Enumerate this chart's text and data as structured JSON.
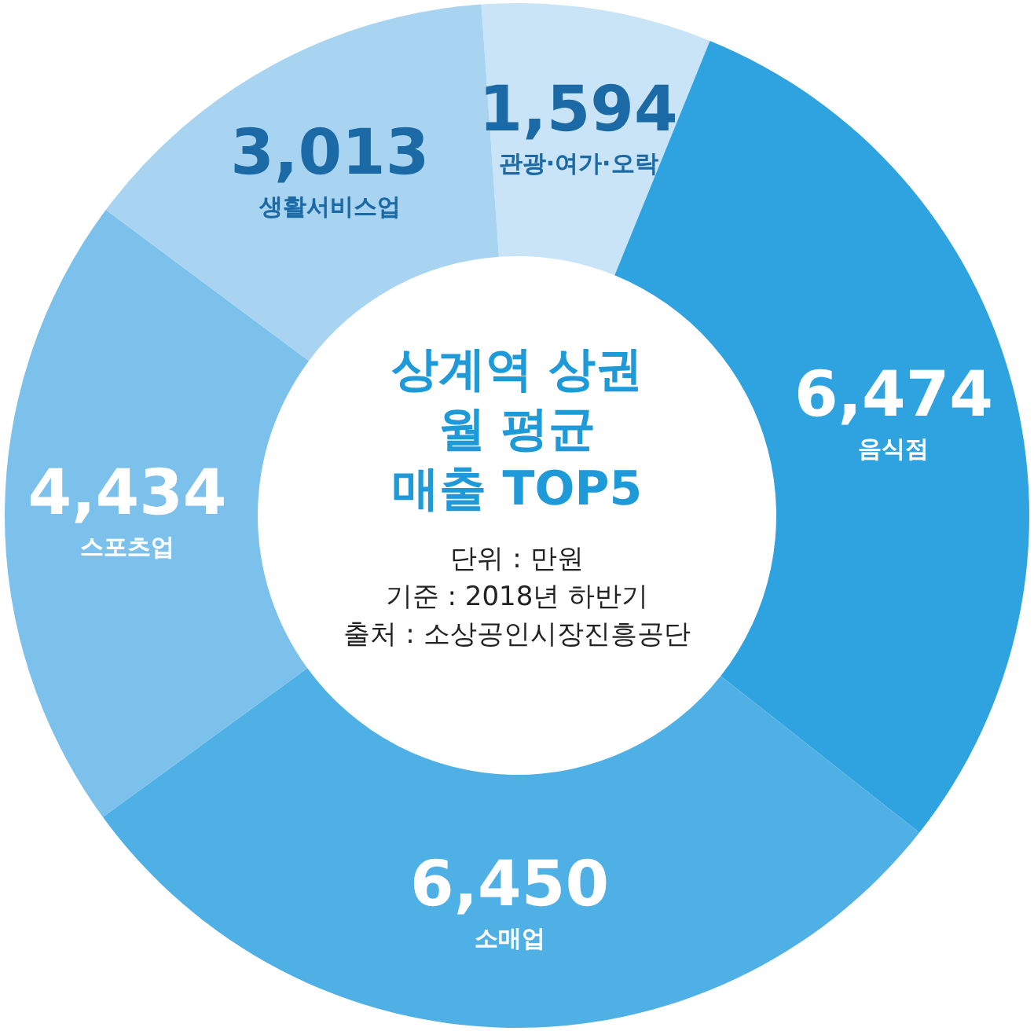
{
  "chart_data": {
    "type": "donut",
    "title": "상계역 상권\n월 평균\n매출 TOP5",
    "categories": [
      "관광·여가·오락",
      "음식점",
      "소매업",
      "스포츠업",
      "생활서비스업"
    ],
    "values": [
      1594,
      6474,
      6450,
      4434,
      3013
    ],
    "value_labels": [
      "1,594",
      "6,474",
      "6,450",
      "4,434",
      "3,013"
    ],
    "colors": [
      "#c9e4f6",
      "#2fa3df",
      "#4fb0e6",
      "#7cc1ec",
      "#a8d4f2"
    ],
    "annotations": [
      "단위 : 만원",
      "기준 : 2018년 하반기",
      "출처 : 소상공인시장진흥공단"
    ]
  }
}
